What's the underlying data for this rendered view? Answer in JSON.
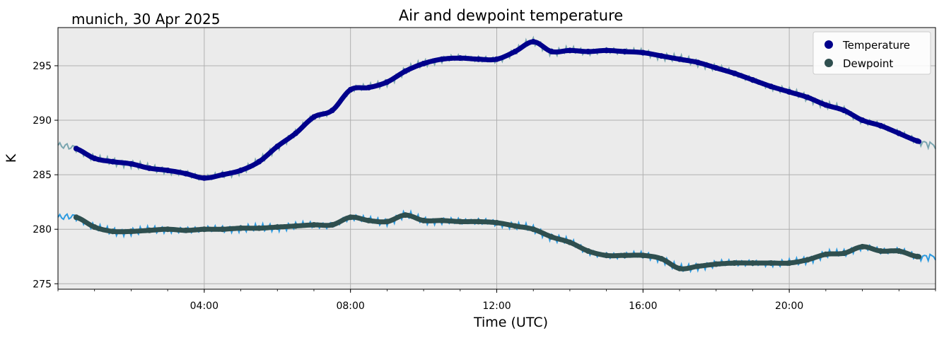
{
  "chart_data": {
    "type": "line",
    "title": "Air and dewpoint temperature",
    "subtitle": "munich, 30 Apr 2025",
    "xlabel": "Time (UTC)",
    "ylabel": "K",
    "xlim": [
      0,
      24
    ],
    "ylim": [
      274.5,
      298.5
    ],
    "x_ticks": [
      {
        "value": 4,
        "label": "04:00"
      },
      {
        "value": 8,
        "label": "08:00"
      },
      {
        "value": 12,
        "label": "12:00"
      },
      {
        "value": 16,
        "label": "16:00"
      },
      {
        "value": 20,
        "label": "20:00"
      }
    ],
    "y_ticks": [
      {
        "value": 275,
        "label": "275"
      },
      {
        "value": 280,
        "label": "280"
      },
      {
        "value": 285,
        "label": "285"
      },
      {
        "value": 290,
        "label": "290"
      },
      {
        "value": 295,
        "label": "295"
      }
    ],
    "grid": true,
    "background": "#ebebeb",
    "legend_position": "top-right",
    "series": [
      {
        "name": "Temperature",
        "color": "#00008b",
        "raw_color": "#7aa6b0",
        "x": [
          0.0,
          0.5,
          1.0,
          1.5,
          2.0,
          2.5,
          3.0,
          3.5,
          4.0,
          4.5,
          5.0,
          5.5,
          6.0,
          6.5,
          7.0,
          7.5,
          8.0,
          8.5,
          9.0,
          9.5,
          10.0,
          10.5,
          11.0,
          11.5,
          12.0,
          12.5,
          13.0,
          13.5,
          14.0,
          14.5,
          15.0,
          15.5,
          16.0,
          16.5,
          17.0,
          17.5,
          18.0,
          18.5,
          19.0,
          19.5,
          20.0,
          20.5,
          21.0,
          21.5,
          22.0,
          22.5,
          23.0,
          23.5,
          24.0
        ],
        "values": [
          287.7,
          287.4,
          286.5,
          286.2,
          286.0,
          285.6,
          285.4,
          285.1,
          284.7,
          285.0,
          285.4,
          286.2,
          287.6,
          288.8,
          290.3,
          290.9,
          292.8,
          293.0,
          293.5,
          294.5,
          295.2,
          295.6,
          295.7,
          295.6,
          295.6,
          296.3,
          297.2,
          296.3,
          296.4,
          296.3,
          296.4,
          296.3,
          296.2,
          295.9,
          295.6,
          295.3,
          294.8,
          294.3,
          293.7,
          293.1,
          292.6,
          292.1,
          291.4,
          290.9,
          290.0,
          289.5,
          288.8,
          288.1,
          287.7
        ]
      },
      {
        "name": "Dewpoint",
        "color": "#2f4f4f",
        "raw_color": "#2b9ae0",
        "x": [
          0.0,
          0.5,
          1.0,
          1.5,
          2.0,
          2.5,
          3.0,
          3.5,
          4.0,
          4.5,
          5.0,
          5.5,
          6.0,
          6.5,
          7.0,
          7.5,
          8.0,
          8.5,
          9.0,
          9.5,
          10.0,
          10.5,
          11.0,
          11.5,
          12.0,
          12.5,
          13.0,
          13.5,
          14.0,
          14.5,
          15.0,
          15.5,
          16.0,
          16.5,
          17.0,
          17.5,
          18.0,
          18.5,
          19.0,
          19.5,
          20.0,
          20.5,
          21.0,
          21.5,
          22.0,
          22.5,
          23.0,
          23.5,
          24.0
        ],
        "values": [
          281.1,
          281.1,
          280.2,
          279.8,
          279.8,
          279.9,
          280.0,
          279.9,
          280.0,
          280.0,
          280.1,
          280.1,
          280.2,
          280.3,
          280.4,
          280.4,
          281.1,
          280.8,
          280.7,
          281.3,
          280.8,
          280.8,
          280.7,
          280.7,
          280.6,
          280.3,
          280.0,
          279.3,
          278.8,
          278.0,
          277.6,
          277.6,
          277.6,
          277.3,
          276.4,
          276.6,
          276.8,
          276.9,
          276.9,
          276.9,
          276.9,
          277.2,
          277.7,
          277.8,
          278.4,
          278.0,
          278.0,
          277.5,
          277.5
        ]
      }
    ]
  }
}
